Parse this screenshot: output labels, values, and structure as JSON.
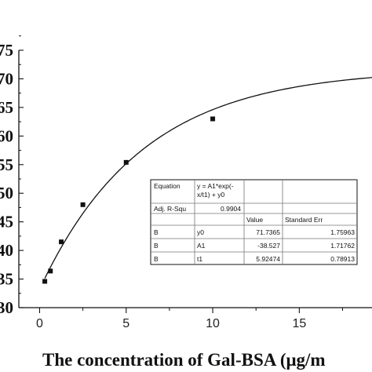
{
  "chart_data": {
    "type": "scatter",
    "xlabel": "The  concentration of Gal-BSA (μg/m",
    "x_ticks": [
      "0",
      "5",
      "10",
      "15"
    ],
    "y_ticks": [
      "30",
      "35",
      "40",
      "45",
      "50",
      "55",
      "60",
      "65",
      "70",
      "75"
    ],
    "xlim": [
      -1.2,
      19.2
    ],
    "ylim": [
      30,
      75
    ],
    "points": [
      {
        "x": 0.3,
        "y": 34.6
      },
      {
        "x": 0.625,
        "y": 36.4
      },
      {
        "x": 1.25,
        "y": 41.5
      },
      {
        "x": 2.5,
        "y": 48.0
      },
      {
        "x": 5.0,
        "y": 55.4
      },
      {
        "x": 10.0,
        "y": 63.0
      }
    ],
    "fit": {
      "model": "y = A1*exp(-x/t1) + y0",
      "y0": 71.7365,
      "A1": -38.527,
      "t1": 5.92474,
      "x_range": [
        0.3,
        19.2
      ]
    },
    "fit_table": {
      "equation_label": "Equation",
      "equation_text": [
        "y = A1*exp(-",
        "x/t1) + y0"
      ],
      "adj_label": "Adj. R-Squ",
      "adj_value": "0.9904",
      "headers": [
        "Value",
        "Standard Err"
      ],
      "rows": [
        {
          "label": "B",
          "param": "y0",
          "value": "71.7365",
          "err": "1.75963"
        },
        {
          "label": "B",
          "param": "A1",
          "value": "-38.527",
          "err": "1.71762"
        },
        {
          "label": "B",
          "param": "t1",
          "value": "5.92474",
          "err": "0.78913"
        }
      ]
    }
  }
}
